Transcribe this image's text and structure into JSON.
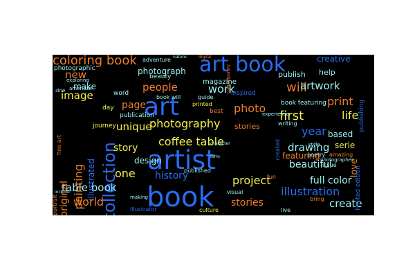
{
  "background": "#000000",
  "words": [
    {
      "text": "book",
      "color": "#2a6cf2"
    },
    {
      "text": "artist",
      "color": "#2a6cf2"
    },
    {
      "text": "art",
      "color": "#2a6cf2"
    },
    {
      "text": "art book",
      "color": "#2a6cf2"
    },
    {
      "text": "collection",
      "color": "#2a6cf2"
    },
    {
      "text": "coloring book",
      "color": "#f07c2a"
    },
    {
      "text": "photography",
      "color": "#f3f04a"
    },
    {
      "text": "coffee table",
      "color": "#f3f04a"
    },
    {
      "text": "photo",
      "color": "#f07c2a"
    },
    {
      "text": "illustration",
      "color": "#2a6cf2"
    },
    {
      "text": "painting",
      "color": "#f07c2a"
    },
    {
      "text": "unique",
      "color": "#f3f04a"
    },
    {
      "text": "project",
      "color": "#f3f04a"
    },
    {
      "text": "table book",
      "color": "#9ff0f0"
    },
    {
      "text": "world",
      "color": "#f07c2a"
    },
    {
      "text": "original",
      "color": "#f07c2a"
    },
    {
      "text": "drawing",
      "color": "#9ff0f0"
    },
    {
      "text": "beautiful",
      "color": "#9ff0f0"
    },
    {
      "text": "history",
      "color": "#2a6cf2"
    },
    {
      "text": "story",
      "color": "#f3f04a"
    },
    {
      "text": "create",
      "color": "#9ff0f0"
    },
    {
      "text": "full color",
      "color": "#9ff0f0"
    },
    {
      "text": "new",
      "color": "#f07c2a"
    },
    {
      "text": "will",
      "color": "#f07c2a"
    },
    {
      "text": "first",
      "color": "#f3f04a"
    },
    {
      "text": "year",
      "color": "#2a6cf2"
    },
    {
      "text": "life",
      "color": "#f3f04a"
    },
    {
      "text": "work",
      "color": "#9ff0f0"
    },
    {
      "text": "people",
      "color": "#f07c2a"
    },
    {
      "text": "image",
      "color": "#f3f04a"
    },
    {
      "text": "page",
      "color": "#f07c2a"
    },
    {
      "text": "one",
      "color": "#f3f04a"
    },
    {
      "text": "print",
      "color": "#f07c2a"
    },
    {
      "text": "artwork",
      "color": "#9ff0f0"
    },
    {
      "text": "creative",
      "color": "#2a6cf2"
    },
    {
      "text": "photograph",
      "color": "#9ff0f0"
    },
    {
      "text": "make",
      "color": "#9ff0f0"
    },
    {
      "text": "stories",
      "color": "#f07c2a"
    },
    {
      "text": "design",
      "color": "#9ff0f0"
    },
    {
      "text": "illustrated",
      "color": "#2a6cf2"
    },
    {
      "text": "publish",
      "color": "#9ff0f0"
    },
    {
      "text": "based",
      "color": "#9ff0f0"
    },
    {
      "text": "serie",
      "color": "#f3f04a"
    },
    {
      "text": "love",
      "color": "#f07c2a"
    },
    {
      "text": "featuring",
      "color": "#f07c2a"
    },
    {
      "text": "stories",
      "color": "#f07c2a"
    },
    {
      "text": "help",
      "color": "#9ff0f0"
    },
    {
      "text": "book featuring",
      "color": "#9ff0f0"
    },
    {
      "text": "inspired",
      "color": "#2a6cf2"
    },
    {
      "text": "publishing",
      "color": "#2a6cf2"
    },
    {
      "text": "limited edition",
      "color": "#2a6cf2"
    },
    {
      "text": "beauty",
      "color": "#9ff0f0"
    },
    {
      "text": "magazine",
      "color": "#9ff0f0"
    },
    {
      "text": "photographic",
      "color": "#9ff0f0"
    },
    {
      "text": "publication",
      "color": "#9ff0f0"
    },
    {
      "text": "word",
      "color": "#9ff0f0"
    },
    {
      "text": "day",
      "color": "#f3f04a"
    },
    {
      "text": "journey",
      "color": "#f3f04a"
    },
    {
      "text": "adventure",
      "color": "#9ff0f0"
    },
    {
      "text": "book will",
      "color": "#9ff0f0"
    },
    {
      "text": "guide",
      "color": "#9ff0f0"
    },
    {
      "text": "printed",
      "color": "#f3f04a"
    },
    {
      "text": "best",
      "color": "#f07c2a"
    },
    {
      "text": "writing",
      "color": "#9ff0f0"
    },
    {
      "text": "poetry",
      "color": "#9ff0f0"
    },
    {
      "text": "amazing",
      "color": "#f07c2a"
    },
    {
      "text": "published",
      "color": "#9ff0f0"
    },
    {
      "text": "created",
      "color": "#2a6cf2"
    },
    {
      "text": "issue",
      "color": "#9ff0f0"
    },
    {
      "text": "fun",
      "color": "#f07c2a"
    },
    {
      "text": "visual",
      "color": "#9ff0f0"
    },
    {
      "text": "culture",
      "color": "#f3f04a"
    },
    {
      "text": "live",
      "color": "#9ff0f0"
    },
    {
      "text": "bring",
      "color": "#f07c2a"
    },
    {
      "text": "illustrator",
      "color": "#2a6cf2"
    },
    {
      "text": "portrait",
      "color": "#f07c2a"
    },
    {
      "text": "experience",
      "color": "#9ff0f0"
    },
    {
      "text": "style",
      "color": "#9ff0f0"
    },
    {
      "text": "fine art",
      "color": "#f07c2a"
    },
    {
      "text": "photographer",
      "color": "#9ff0f0"
    },
    {
      "text": "exploring",
      "color": "#9ff0f0"
    },
    {
      "text": "american",
      "color": "#9ff0f0"
    },
    {
      "text": "zine",
      "color": "#9ff0f0"
    },
    {
      "text": "nature",
      "color": "#9ff0f0"
    },
    {
      "text": "digital",
      "color": "#f07c2a"
    },
    {
      "text": "include",
      "color": "#9ff0f0"
    },
    {
      "text": "making",
      "color": "#9ff0f0"
    },
    {
      "text": "form",
      "color": "#9ff0f0"
    },
    {
      "text": "character",
      "color": "#9ff0f0"
    },
    {
      "text": "contemporary",
      "color": "#f07c2a"
    }
  ]
}
